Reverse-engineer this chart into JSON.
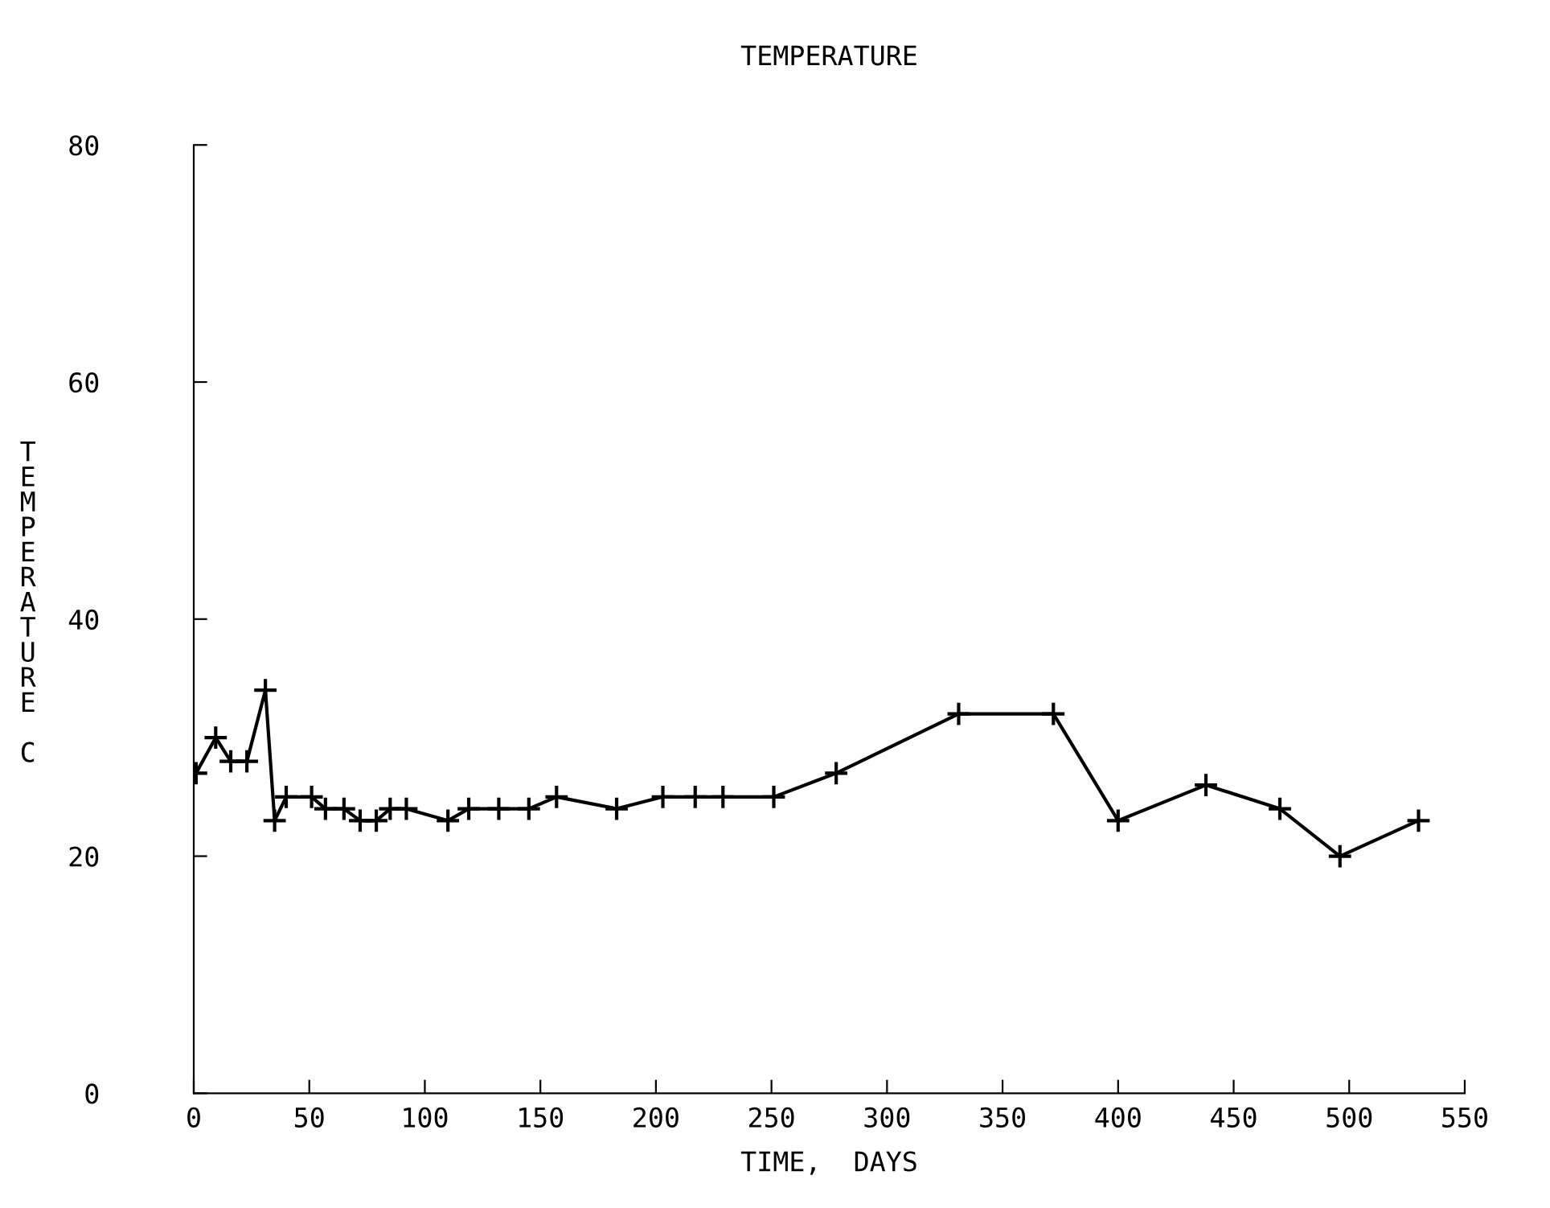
{
  "chart_data": {
    "type": "line",
    "title": "TEMPERATURE",
    "xlabel": "TIME,  DAYS",
    "ylabel": "TEMPERATURE C",
    "x": [
      1,
      9.5,
      16,
      23,
      31,
      35,
      40,
      51,
      57,
      65,
      72,
      79,
      85,
      92,
      110,
      119,
      132,
      145,
      157,
      183,
      203,
      217,
      229,
      251,
      278,
      331,
      372,
      400,
      438,
      470,
      496,
      530
    ],
    "values": [
      27,
      30,
      28,
      28,
      34,
      23,
      25,
      25,
      24,
      24,
      23,
      23,
      24,
      24,
      23,
      24,
      24,
      24,
      25,
      24,
      25,
      25,
      25,
      25,
      27,
      32,
      32,
      23,
      26,
      24,
      20,
      23
    ],
    "color": "#000000",
    "marker": "cross",
    "line_style": "solid",
    "grid": false,
    "legend": false,
    "xlim": [
      0,
      550
    ],
    "xticks": [
      0,
      50,
      100,
      150,
      200,
      250,
      300,
      350,
      400,
      450,
      500,
      550
    ],
    "ylim": [
      0,
      80
    ],
    "yticks": [
      0,
      20,
      40,
      60,
      80
    ]
  }
}
